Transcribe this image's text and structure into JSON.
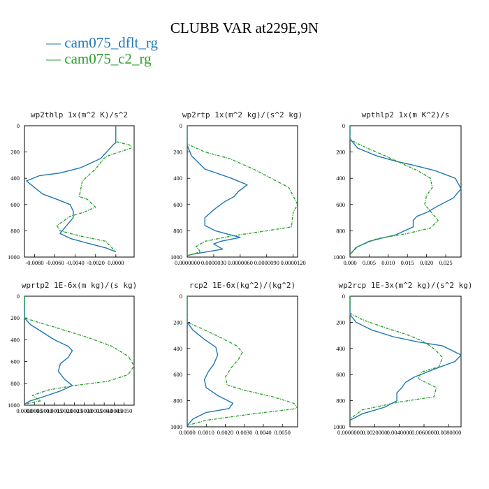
{
  "figure": {
    "title": "CLUBB VAR at229E,9N",
    "legend": [
      {
        "label": "cam075_dflt_rg",
        "color": "#1f77b4",
        "style": "solid"
      },
      {
        "label": "cam075_c2_rg",
        "color": "#2ca02c",
        "style": "dashed"
      }
    ]
  },
  "chart_data": [
    {
      "type": "line",
      "title": "wp2thlp  1x(m^2 K)/s^2",
      "xlim": [
        -0.009,
        0.0018
      ],
      "ylim": [
        1000,
        0
      ],
      "xticks": [
        -0.008,
        -0.006,
        -0.004,
        -0.002,
        0.0
      ],
      "xtick_labels": [
        "-0.0080",
        "-0.0060",
        "-0.0040",
        "-0.0020",
        "0.0000"
      ],
      "yticks": [
        0,
        200,
        400,
        600,
        800,
        1000
      ],
      "ytick_labels": [
        "0",
        "200",
        "400",
        "600",
        "800",
        "1000"
      ],
      "series": [
        {
          "name": "cam075_dflt_rg",
          "color": "#1f77b4",
          "dash": false,
          "x": [
            0.0,
            0.0,
            -0.0002,
            -0.0015,
            -0.0035,
            -0.0055,
            -0.0075,
            -0.0088,
            -0.0085,
            -0.0072,
            -0.0058,
            -0.0045,
            -0.0042,
            -0.0042,
            -0.0055,
            -0.0044,
            -0.0025,
            -0.001,
            0.0
          ],
          "y": [
            0,
            130,
            140,
            250,
            320,
            360,
            380,
            420,
            440,
            520,
            560,
            600,
            650,
            700,
            820,
            860,
            900,
            930,
            960
          ]
        },
        {
          "name": "cam075_c2_rg",
          "color": "#2ca02c",
          "dash": true,
          "x": [
            0.0,
            0.0,
            0.0015,
            0.0015,
            -0.0008,
            -0.0012,
            -0.002,
            -0.0033,
            -0.0036,
            -0.0028,
            -0.002,
            -0.0032,
            -0.0045,
            -0.0058,
            -0.0055,
            -0.0035,
            -0.001,
            0.0
          ],
          "y": [
            0,
            120,
            150,
            170,
            230,
            250,
            330,
            420,
            540,
            560,
            620,
            660,
            690,
            760,
            800,
            840,
            880,
            960
          ]
        }
      ]
    },
    {
      "type": "line",
      "title": "wp2rtp  1x(m^2 kg)/(s^2 kg)",
      "xlim": [
        0.0,
        1.25e-05
      ],
      "ylim": [
        1000,
        0
      ],
      "xticks": [
        0.0,
        3e-06,
        6e-06,
        9e-06,
        1.2e-05
      ],
      "xtick_labels": [
        "0.0000000",
        "0.0000030",
        "0.0000060",
        "0.0000090",
        "0.0000120"
      ],
      "yticks": [
        0,
        200,
        400,
        600,
        800,
        1000
      ],
      "ytick_labels": [
        "0",
        "200",
        "400",
        "600",
        "800",
        "1000"
      ],
      "series": [
        {
          "name": "cam075_dflt_rg",
          "color": "#1f77b4",
          "dash": false,
          "x": [
            0.0,
            0.0,
            5e-07,
            2e-06,
            5e-06,
            6.8e-06,
            5.8e-06,
            5.3e-06,
            4.2e-06,
            3e-06,
            2e-06,
            2e-06,
            3.2e-06,
            6e-06,
            3.8e-06,
            3e-06,
            4e-06,
            5e-07,
            0.0
          ],
          "y": [
            0,
            150,
            230,
            330,
            400,
            450,
            500,
            540,
            580,
            640,
            700,
            760,
            800,
            850,
            880,
            900,
            940,
            980,
            990
          ]
        },
        {
          "name": "cam075_c2_rg",
          "color": "#2ca02c",
          "dash": true,
          "x": [
            0.0,
            0.0,
            2e-06,
            4.8e-06,
            7.5e-06,
            9.5e-06,
            1.15e-05,
            1.18e-05,
            1.25e-05,
            1.2e-05,
            1.18e-05,
            9e-06,
            5e-06,
            2e-06,
            1e-06,
            1.5e-06,
            0.0
          ],
          "y": [
            0,
            140,
            200,
            250,
            330,
            400,
            470,
            510,
            600,
            660,
            770,
            800,
            840,
            880,
            920,
            960,
            990
          ]
        }
      ]
    },
    {
      "type": "line",
      "title": "wpthlp2  1x(m K^2)/s",
      "xlim": [
        0.0,
        0.029
      ],
      "ylim": [
        1000,
        0
      ],
      "xticks": [
        0.0,
        0.005,
        0.01,
        0.015,
        0.02,
        0.025
      ],
      "xtick_labels": [
        "0.000",
        "0.005",
        "0.010",
        "0.015",
        "0.020",
        "0.025"
      ],
      "yticks": [
        0,
        200,
        400,
        600,
        800,
        1000
      ],
      "ytick_labels": [
        "0",
        "200",
        "400",
        "600",
        "800",
        "1000"
      ],
      "series": [
        {
          "name": "cam075_dflt_rg",
          "color": "#1f77b4",
          "dash": false,
          "x": [
            0.0,
            0.0,
            0.002,
            0.007,
            0.012,
            0.0165,
            0.022,
            0.0275,
            0.029,
            0.027,
            0.023,
            0.02,
            0.0175,
            0.0165,
            0.0165,
            0.012,
            0.005,
            0.0015,
            0.0
          ],
          "y": [
            0,
            100,
            170,
            230,
            270,
            300,
            340,
            400,
            480,
            550,
            610,
            660,
            690,
            720,
            770,
            830,
            880,
            930,
            980
          ]
        },
        {
          "name": "cam075_c2_rg",
          "color": "#2ca02c",
          "dash": true,
          "x": [
            0.0,
            0.0,
            0.0015,
            0.0045,
            0.0085,
            0.013,
            0.0175,
            0.021,
            0.0215,
            0.02,
            0.0195,
            0.021,
            0.023,
            0.021,
            0.015,
            0.007,
            0.002,
            0.0
          ],
          "y": [
            0,
            100,
            130,
            170,
            220,
            280,
            340,
            400,
            470,
            530,
            600,
            650,
            720,
            780,
            820,
            860,
            920,
            980
          ]
        }
      ]
    },
    {
      "type": "line",
      "title": "wprtp2  1E-6x(m kg)/(s kg)",
      "xlim": [
        0.0,
        0.0055
      ],
      "ylim": [
        1000,
        0
      ],
      "xticks": [
        0.0,
        0.0005,
        0.001,
        0.0015,
        0.002,
        0.0025,
        0.003,
        0.0035,
        0.004,
        0.0045,
        0.005
      ],
      "xtick_labels": [
        "0.0000",
        "0.0005",
        "0.0010",
        "0.0015",
        "0.0020",
        "0.0025",
        "0.0030",
        "0.0035",
        "0.0040",
        "0.0045",
        "0.0050"
      ],
      "yticks": [
        0,
        200,
        400,
        600,
        800,
        1000
      ],
      "ytick_labels": [
        "0",
        "200",
        "400",
        "600",
        "800",
        "1000"
      ],
      "series": [
        {
          "name": "cam075_dflt_rg",
          "color": "#1f77b4",
          "dash": false,
          "x": [
            0.0,
            0.0,
            0.0003,
            0.0009,
            0.0015,
            0.0022,
            0.0024,
            0.0022,
            0.0018,
            0.0017,
            0.002,
            0.0024,
            0.0018,
            0.001,
            0.0003,
            0.0
          ],
          "y": [
            0,
            200,
            260,
            330,
            400,
            460,
            500,
            560,
            620,
            690,
            760,
            820,
            870,
            920,
            960,
            990
          ]
        },
        {
          "name": "cam075_c2_rg",
          "color": "#2ca02c",
          "dash": true,
          "x": [
            0.0,
            0.0,
            0.0007,
            0.0018,
            0.0032,
            0.0044,
            0.0052,
            0.0055,
            0.0052,
            0.0042,
            0.0025,
            0.0012,
            0.0004,
            0.0008,
            0.0
          ],
          "y": [
            0,
            200,
            240,
            300,
            380,
            460,
            550,
            640,
            720,
            780,
            820,
            860,
            910,
            960,
            990
          ]
        }
      ]
    },
    {
      "type": "line",
      "title": "rcp2  1E-6x(kg^2)/(kg^2)",
      "xlim": [
        0.0,
        0.0058
      ],
      "ylim": [
        1000,
        0
      ],
      "xticks": [
        0.0,
        0.001,
        0.002,
        0.003,
        0.004,
        0.005
      ],
      "xtick_labels": [
        "0.0000",
        "0.0010",
        "0.0020",
        "0.0030",
        "0.0040",
        "0.0050"
      ],
      "yticks": [
        0,
        200,
        400,
        600,
        800,
        1000
      ],
      "ytick_labels": [
        "0",
        "200",
        "400",
        "600",
        "800",
        "1000"
      ],
      "series": [
        {
          "name": "cam075_dflt_rg",
          "color": "#1f77b4",
          "dash": false,
          "x": [
            0.0,
            0.0,
            0.0003,
            0.0009,
            0.0015,
            0.0016,
            0.0014,
            0.0011,
            0.0009,
            0.001,
            0.0016,
            0.0024,
            0.0022,
            0.001,
            0.0003,
            0.0
          ],
          "y": [
            0,
            200,
            260,
            330,
            390,
            450,
            520,
            580,
            640,
            700,
            760,
            820,
            860,
            890,
            940,
            990
          ]
        },
        {
          "name": "cam075_c2_rg",
          "color": "#2ca02c",
          "dash": true,
          "x": [
            0.0,
            0.0,
            0.0008,
            0.0018,
            0.0026,
            0.0029,
            0.0027,
            0.0023,
            0.002,
            0.0021,
            0.003,
            0.0045,
            0.0056,
            0.0058,
            0.0035,
            0.001,
            0.0
          ],
          "y": [
            0,
            200,
            250,
            320,
            380,
            430,
            480,
            550,
            620,
            680,
            720,
            770,
            820,
            860,
            900,
            950,
            990
          ]
        }
      ]
    },
    {
      "type": "line",
      "title": "wp2rcp  1E-3x(m^2 kg)/(s^2 kg)",
      "xlim": [
        0.0,
        0.009
      ],
      "ylim": [
        1000,
        0
      ],
      "xticks": [
        0.0,
        0.002,
        0.004,
        0.006,
        0.008
      ],
      "xtick_labels": [
        "0.0000000",
        "0.0020000",
        "0.0040000",
        "0.0060000",
        "0.0080000"
      ],
      "yticks": [
        0,
        200,
        400,
        600,
        800,
        1000
      ],
      "ytick_labels": [
        "0",
        "200",
        "400",
        "600",
        "800",
        "1000"
      ],
      "series": [
        {
          "name": "cam075_dflt_rg",
          "color": "#1f77b4",
          "dash": false,
          "x": [
            0.0,
            0.0,
            0.0005,
            0.0018,
            0.0035,
            0.0055,
            0.0075,
            0.009,
            0.0085,
            0.0068,
            0.0052,
            0.0045,
            0.0042,
            0.0038,
            0.0038,
            0.0028,
            0.001,
            0.0
          ],
          "y": [
            0,
            140,
            200,
            260,
            310,
            350,
            380,
            450,
            500,
            560,
            620,
            660,
            700,
            740,
            800,
            850,
            900,
            950
          ]
        },
        {
          "name": "cam075_c2_rg",
          "color": "#2ca02c",
          "dash": true,
          "x": [
            0.0,
            0.0,
            0.001,
            0.0028,
            0.0045,
            0.0058,
            0.0065,
            0.007,
            0.0075,
            0.0072,
            0.0058,
            0.0055,
            0.007,
            0.0068,
            0.004,
            0.001,
            0.0
          ],
          "y": [
            0,
            130,
            180,
            240,
            290,
            340,
            380,
            420,
            470,
            540,
            580,
            630,
            700,
            770,
            810,
            870,
            940
          ]
        }
      ]
    }
  ]
}
